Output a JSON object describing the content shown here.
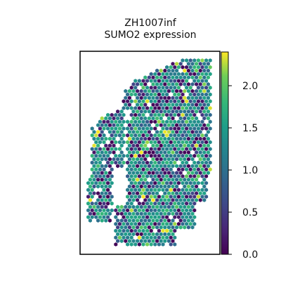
{
  "chart_data": {
    "type": "scatter",
    "title_line1": "ZH1007inf",
    "title_line2": "SUMO2 expression",
    "xlabel": "",
    "ylabel": "",
    "grid": false,
    "axis_ticks": false,
    "colorbar": {
      "colormap": "viridis",
      "range": [
        0.0,
        2.4
      ],
      "ticks": [
        "0.0",
        "0.5",
        "1.0",
        "1.5",
        "2.0"
      ],
      "tick_values": [
        0.0,
        0.5,
        1.0,
        1.5,
        2.0
      ]
    },
    "marker": "hexagon",
    "value_distribution_note": "spot values range 0.0–2.4, most around 1.0–1.8"
  },
  "colors": {
    "low": "#440154",
    "mid": "#21918c",
    "high": "#fde725"
  }
}
